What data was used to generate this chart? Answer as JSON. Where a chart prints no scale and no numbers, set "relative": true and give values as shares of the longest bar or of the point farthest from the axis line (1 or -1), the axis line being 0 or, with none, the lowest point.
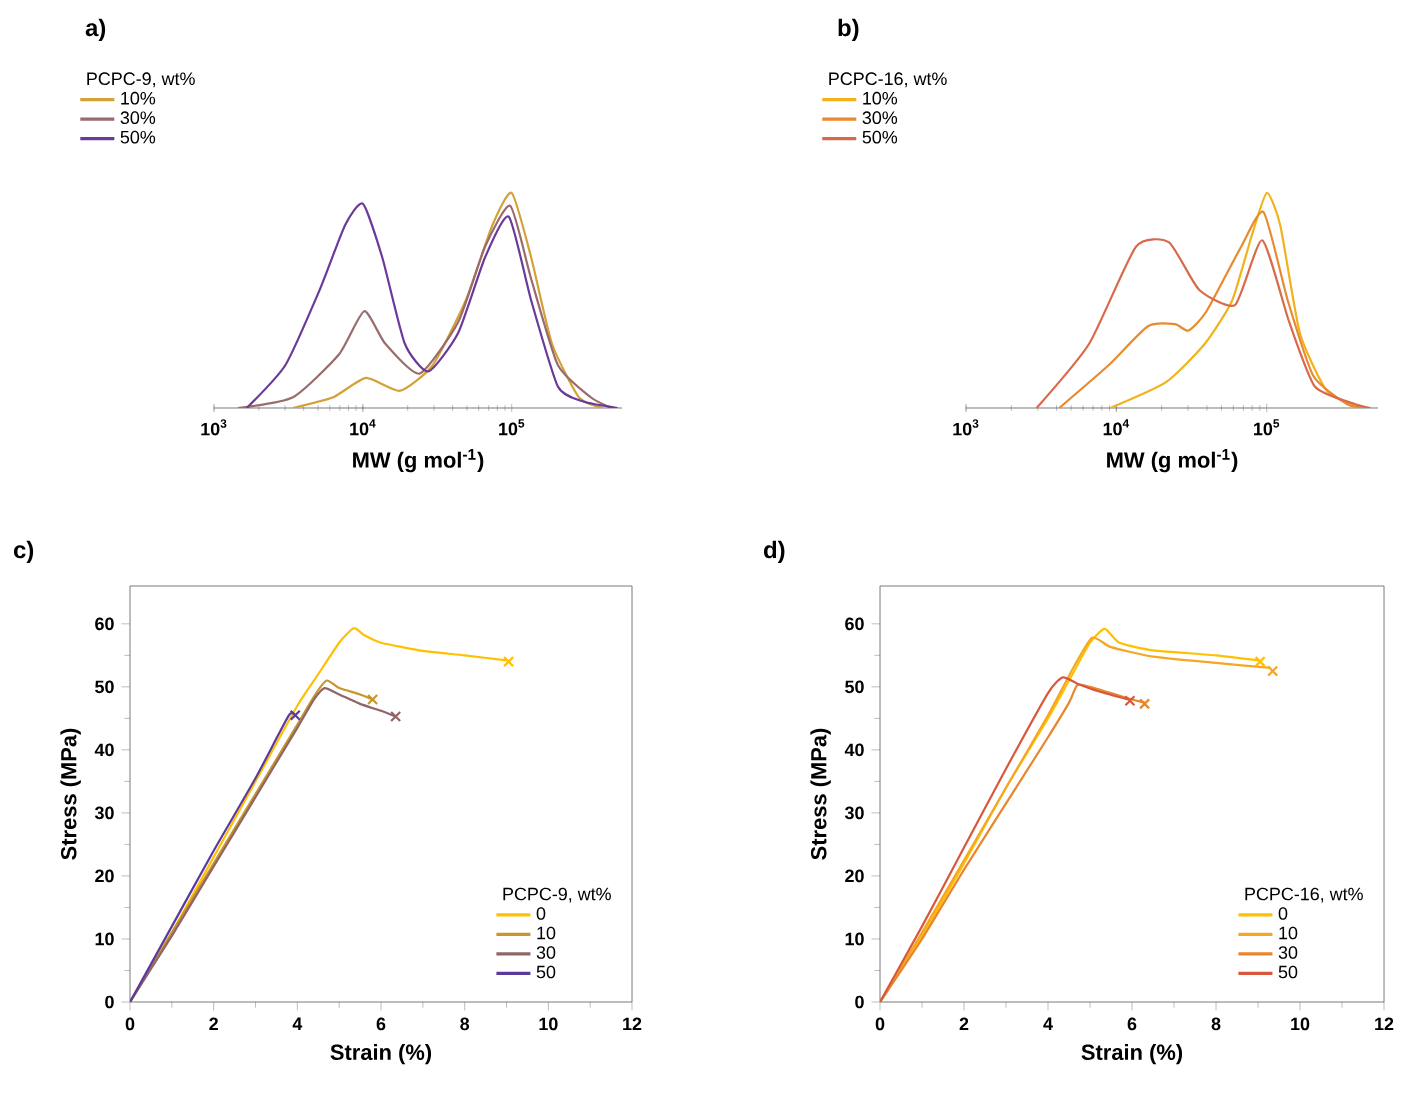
{
  "chart_data": [
    {
      "type": "line",
      "title": "a)",
      "xlabel": "MW (g mol$^{-1}$)",
      "legend_title": "PCPC-9, wt%",
      "legend": "top left",
      "relative": true,
      "log": "x",
      "xlim": [
        1000,
        550000
      ],
      "xticks": [
        {
          "value": 1000,
          "label": "10$^{3}$"
        },
        {
          "value": 10000,
          "label": "10$^{4}$"
        },
        {
          "value": 100000,
          "label": "10$^{5}$"
        }
      ],
      "series": [
        {
          "name": "10%",
          "color": "#d4a136",
          "x": [
            3390,
            6310,
            10500,
            17800,
            29500,
            49000,
            74100,
            100000,
            135000,
            186000,
            282000,
            407000
          ],
          "values": [
            0,
            0.05,
            0.14,
            0.08,
            0.2,
            0.5,
            0.85,
            1.0,
            0.7,
            0.3,
            0.05,
            0
          ]
        },
        {
          "name": "30%",
          "color": "#9a6b6b",
          "x": [
            1450,
            3390,
            6920,
            10200,
            14100,
            24000,
            43700,
            66100,
            97700,
            135000,
            204000,
            339000,
            468000
          ],
          "values": [
            0,
            0.05,
            0.25,
            0.45,
            0.3,
            0.16,
            0.4,
            0.75,
            0.94,
            0.6,
            0.2,
            0.05,
            0
          ]
        },
        {
          "name": "50%",
          "color": "#6a3a9a",
          "x": [
            1660,
            3020,
            5130,
            7590,
            10000,
            13500,
            19100,
            27500,
            43700,
            66100,
            95500,
            135000,
            204000,
            302000,
            513000
          ],
          "values": [
            0,
            0.2,
            0.55,
            0.85,
            0.95,
            0.7,
            0.3,
            0.17,
            0.35,
            0.7,
            0.89,
            0.5,
            0.1,
            0.03,
            0
          ]
        }
      ]
    },
    {
      "type": "line",
      "title": "b)",
      "xlabel": "MW (g mol$^{-1}$)",
      "legend_title": "PCPC-16, wt%",
      "legend": "top left",
      "relative": true,
      "log": "x",
      "xlim": [
        1000,
        550000
      ],
      "xticks": [
        {
          "value": 1000,
          "label": "10$^{3}$"
        },
        {
          "value": 10000,
          "label": "10$^{4}$"
        },
        {
          "value": 100000,
          "label": "10$^{5}$"
        }
      ],
      "series": [
        {
          "name": "10%",
          "color": "#f2b21b",
          "x": [
            9120,
            21400,
            38900,
            58900,
            79400,
            100000,
            123000,
            166000,
            251000,
            417000
          ],
          "values": [
            0,
            0.12,
            0.3,
            0.5,
            0.8,
            1.0,
            0.85,
            0.35,
            0.08,
            0
          ]
        },
        {
          "name": "30%",
          "color": "#e88a2e",
          "x": [
            4170,
            8910,
            16200,
            24500,
            30200,
            39800,
            67600,
            95500,
            138000,
            204000,
            339000,
            457000
          ],
          "values": [
            0,
            0.2,
            0.38,
            0.39,
            0.36,
            0.45,
            0.75,
            0.91,
            0.5,
            0.15,
            0.02,
            0
          ]
        },
        {
          "name": "50%",
          "color": "#d8694a",
          "x": [
            2950,
            6610,
            13500,
            22400,
            35500,
            61700,
            93300,
            141000,
            209000,
            380000,
            490000
          ],
          "values": [
            0,
            0.3,
            0.75,
            0.77,
            0.55,
            0.48,
            0.78,
            0.4,
            0.1,
            0.02,
            0
          ]
        }
      ]
    },
    {
      "type": "line",
      "title": "c)",
      "xlabel": "Strain (%)",
      "ylabel": "Stress (MPa)",
      "legend_title": "PCPC-9, wt%",
      "legend": "bottom right",
      "xlim": [
        0,
        12
      ],
      "ylim": [
        0,
        66
      ],
      "xticks": [
        0,
        2,
        4,
        6,
        8,
        10,
        12
      ],
      "yticks": [
        0,
        10,
        20,
        30,
        40,
        50,
        60
      ],
      "series": [
        {
          "name": "0",
          "color": "#ffc000",
          "x": [
            0,
            1,
            2,
            3,
            4,
            4.5,
            5.0,
            5.35,
            5.6,
            6,
            7,
            8,
            9
          ],
          "values": [
            0,
            11,
            23,
            35,
            47,
            52,
            57,
            59.3,
            58.2,
            57,
            55.7,
            55,
            54.2
          ]
        },
        {
          "name": "10",
          "color": "#c8962a",
          "x": [
            0,
            1,
            2,
            3,
            4,
            4.4,
            4.7,
            5,
            5.5,
            5.8
          ],
          "values": [
            0,
            11,
            22,
            33,
            44,
            48.5,
            51,
            49.8,
            48.8,
            48
          ]
        },
        {
          "name": "30",
          "color": "#8f6565",
          "x": [
            0,
            1,
            2,
            3,
            4,
            4.4,
            4.65,
            5,
            5.5,
            6,
            6.35
          ],
          "values": [
            0,
            10.5,
            21.5,
            32.5,
            43.5,
            48,
            49.8,
            48.8,
            47.3,
            46.2,
            45.3
          ]
        },
        {
          "name": "50",
          "color": "#5b3a9e",
          "x": [
            0,
            1,
            2,
            3,
            3.8,
            3.95
          ],
          "values": [
            0,
            12,
            24,
            35.5,
            45.5,
            45.3
          ]
        },
        {
          "type": "scatter",
          "marker": "cross",
          "color": "#ffc000",
          "x": [
            9.05
          ],
          "values": [
            54
          ]
        },
        {
          "type": "scatter",
          "marker": "cross",
          "color": "#c8962a",
          "x": [
            5.8
          ],
          "values": [
            48
          ]
        },
        {
          "type": "scatter",
          "marker": "cross",
          "color": "#8f6565",
          "x": [
            6.35
          ],
          "values": [
            45.3
          ]
        },
        {
          "type": "scatter",
          "marker": "cross",
          "color": "#5b3a9e",
          "x": [
            3.95
          ],
          "values": [
            45.5
          ]
        }
      ]
    },
    {
      "type": "line",
      "title": "d)",
      "xlabel": "Strain (%)",
      "ylabel": "Stress (MPa)",
      "legend_title": "PCPC-16, wt%",
      "legend": "bottom right",
      "xlim": [
        0,
        12
      ],
      "ylim": [
        0,
        66
      ],
      "xticks": [
        0,
        2,
        4,
        6,
        8,
        10,
        12
      ],
      "yticks": [
        0,
        10,
        20,
        30,
        40,
        50,
        60
      ],
      "series": [
        {
          "name": "0",
          "color": "#ffc000",
          "x": [
            0,
            1,
            2,
            3,
            4,
            4.5,
            5,
            5.35,
            5.7,
            6.5,
            8,
            9
          ],
          "values": [
            0,
            10.5,
            22,
            34,
            45,
            51,
            57,
            59.2,
            57,
            55.8,
            55,
            54.2
          ]
        },
        {
          "name": "10",
          "color": "#f5a623",
          "x": [
            0,
            1,
            2,
            3,
            4,
            4.6,
            5.05,
            5.5,
            6.5,
            8,
            9.3
          ],
          "values": [
            0,
            11,
            22.5,
            34,
            45.5,
            53,
            57.8,
            56.3,
            54.8,
            53.8,
            53
          ]
        },
        {
          "name": "30",
          "color": "#e8852d",
          "x": [
            0,
            1,
            2,
            3,
            4,
            4.5,
            4.7,
            5.0,
            5.5,
            6,
            6.3
          ],
          "values": [
            0,
            10,
            21,
            31.5,
            42,
            47.5,
            50.3,
            50,
            49,
            48,
            47.5
          ]
        },
        {
          "name": "50",
          "color": "#d9573a",
          "x": [
            0,
            1,
            2,
            3,
            4,
            4.35,
            4.7,
            5.2,
            5.9
          ],
          "values": [
            0,
            12,
            24.5,
            37,
            49,
            51.5,
            50.5,
            49.3,
            48
          ]
        },
        {
          "type": "scatter",
          "marker": "cross",
          "color": "#ffc000",
          "x": [
            9.05
          ],
          "values": [
            54
          ]
        },
        {
          "type": "scatter",
          "marker": "cross",
          "color": "#f5a623",
          "x": [
            9.35
          ],
          "values": [
            52.5
          ]
        },
        {
          "type": "scatter",
          "marker": "cross",
          "color": "#e8852d",
          "x": [
            6.3
          ],
          "values": [
            47.3
          ]
        },
        {
          "type": "scatter",
          "marker": "cross",
          "color": "#d9573a",
          "x": [
            5.95
          ],
          "values": [
            47.8
          ]
        }
      ]
    }
  ]
}
